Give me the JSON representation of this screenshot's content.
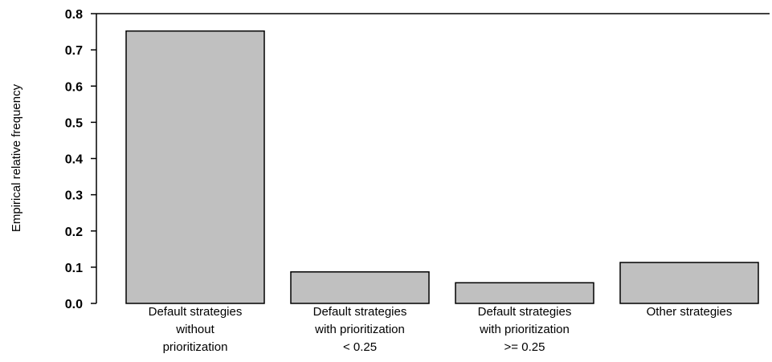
{
  "chart_data": {
    "type": "bar",
    "categories": [
      [
        "Default strategies",
        "without",
        "prioritization"
      ],
      [
        "Default strategies",
        "with prioritization",
        "< 0.25"
      ],
      [
        "Default strategies",
        "with prioritization",
        ">= 0.25"
      ],
      [
        "Other strategies"
      ]
    ],
    "values": [
      0.752,
      0.087,
      0.057,
      0.113
    ],
    "title": "",
    "xlabel": "",
    "ylabel": "Empirical relative frequency",
    "ylim": [
      0.0,
      0.8
    ],
    "yticks": [
      "0.0",
      "0.1",
      "0.2",
      "0.3",
      "0.4",
      "0.5",
      "0.6",
      "0.7",
      "0.8"
    ],
    "grid": false,
    "bar_fill": "#c0c0c0",
    "bar_stroke": "#000000"
  }
}
